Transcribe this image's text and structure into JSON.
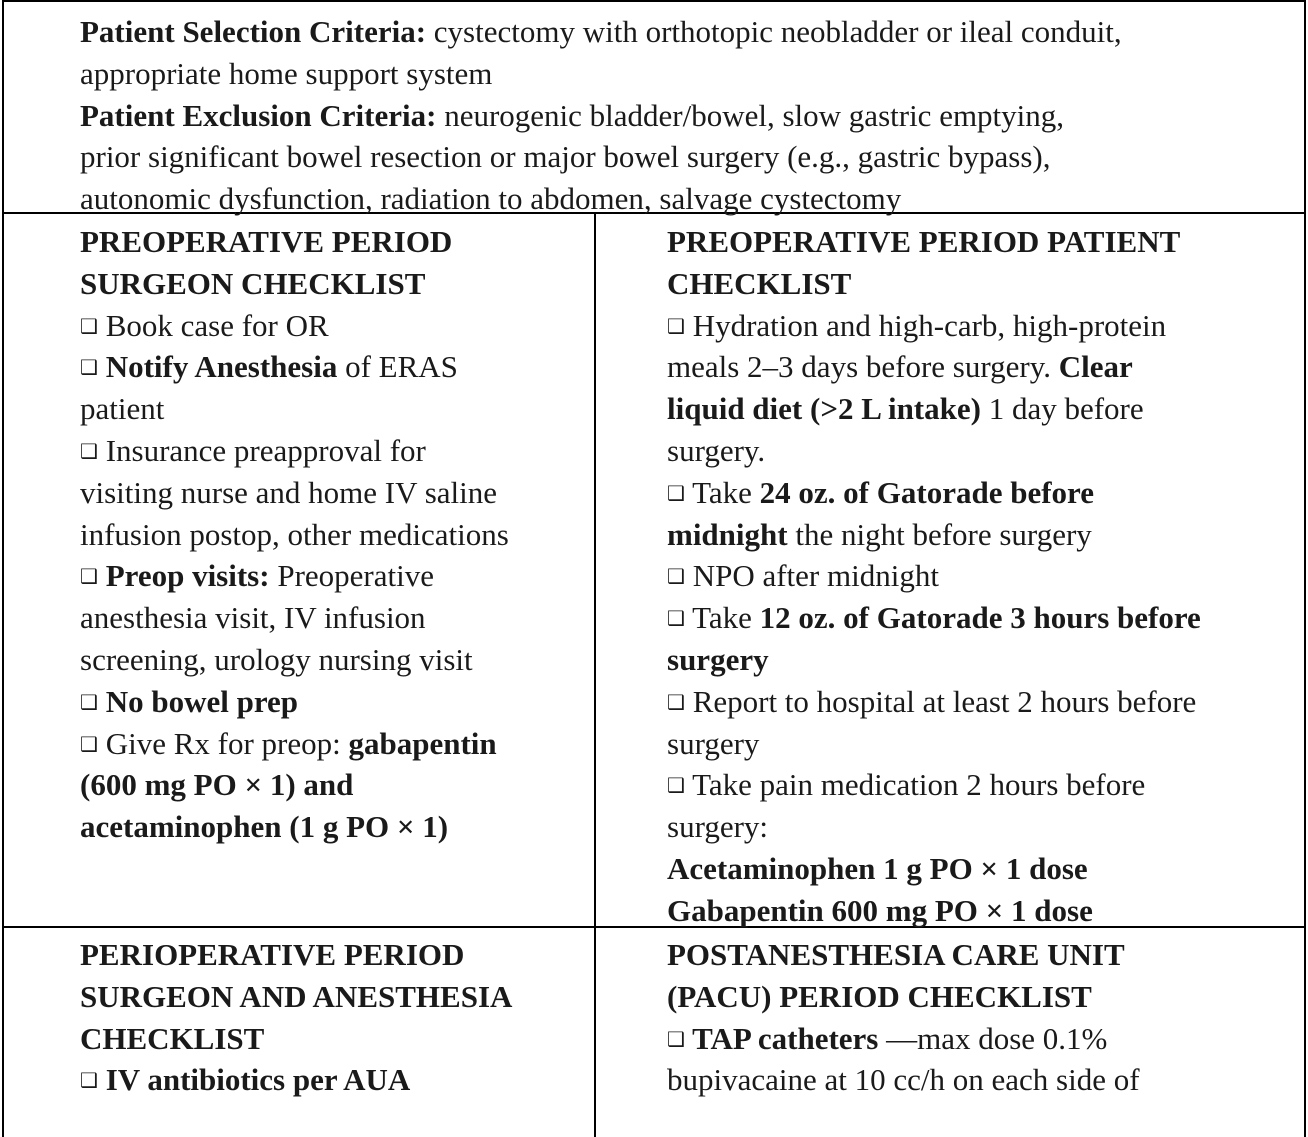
{
  "criteria": {
    "selection_label": "Patient Selection Criteria:",
    "selection_text_1": " cystectomy with orthotopic neobladder or ileal conduit,",
    "selection_text_2": "appropriate home support system",
    "exclusion_label": "Patient Exclusion Criteria:",
    "exclusion_text_1": " neurogenic bladder/bowel, slow gastric emptying,",
    "exclusion_text_2": "prior significant bowel resection or major bowel surgery (e.g., gastric bypass),",
    "exclusion_text_3": "autonomic dysfunction, radiation to abdomen, salvage cystectomy"
  },
  "checkbox_glyph": "❑",
  "preop_surgeon": {
    "heading_1": "PREOPERATIVE PERIOD",
    "heading_2": "SURGEON CHECKLIST",
    "item1": " Book case for OR",
    "item2_bold": " Notify Anesthesia",
    "item2_text": " of ERAS",
    "item2_text_2": "patient",
    "item3_1": " Insurance preapproval for",
    "item3_2": "visiting nurse and home IV saline",
    "item3_3": "infusion postop, other medications",
    "item4_bold": " Preop visits:",
    "item4_text": " Preoperative",
    "item4_2": "anesthesia visit, IV infusion",
    "item4_3": "screening, urology nursing visit",
    "item5_bold": " No bowel prep",
    "item6_text": " Give Rx for preop: ",
    "item6_bold": "gabapentin",
    "item6_2": "(600 mg PO × 1) and",
    "item6_3": "acetaminophen (1 g PO × 1)"
  },
  "preop_patient": {
    "heading_1": "PREOPERATIVE PERIOD PATIENT",
    "heading_2": "CHECKLIST",
    "item1_1": " Hydration and high-carb, high-protein",
    "item1_2a": "meals 2–3 days before surgery. ",
    "item1_2b": "Clear",
    "item1_3a": "liquid diet (>2 L intake)",
    "item1_3b": " 1 day before",
    "item1_4": "surgery.",
    "item2_a": " Take ",
    "item2_b": "24 oz. of Gatorade before",
    "item2_c": "midnight",
    "item2_d": " the night before surgery",
    "item3": " NPO after midnight",
    "item4_a": " Take ",
    "item4_b": "12 oz. of Gatorade 3 hours before",
    "item4_c": "surgery",
    "item5_1": " Report to hospital at least 2 hours before",
    "item5_2": "surgery",
    "item6_1": " Take pain medication 2 hours before",
    "item6_2": "surgery:",
    "dose_1": "Acetaminophen 1 g PO × 1 dose",
    "dose_2": "Gabapentin 600 mg PO × 1 dose"
  },
  "periop": {
    "heading_1": "PERIOPERATIVE PERIOD",
    "heading_2": "SURGEON AND ANESTHESIA",
    "heading_3": "CHECKLIST",
    "item1_bold": " IV antibiotics per AUA"
  },
  "pacu": {
    "heading_1": "POSTANESTHESIA CARE UNIT",
    "heading_2": "(PACU) PERIOD CHECKLIST",
    "item1_bold": " TAP catheters",
    "item1_text": " —max dose 0.1%",
    "item1_2": "bupivacaine at 10 cc/h on each side of"
  }
}
